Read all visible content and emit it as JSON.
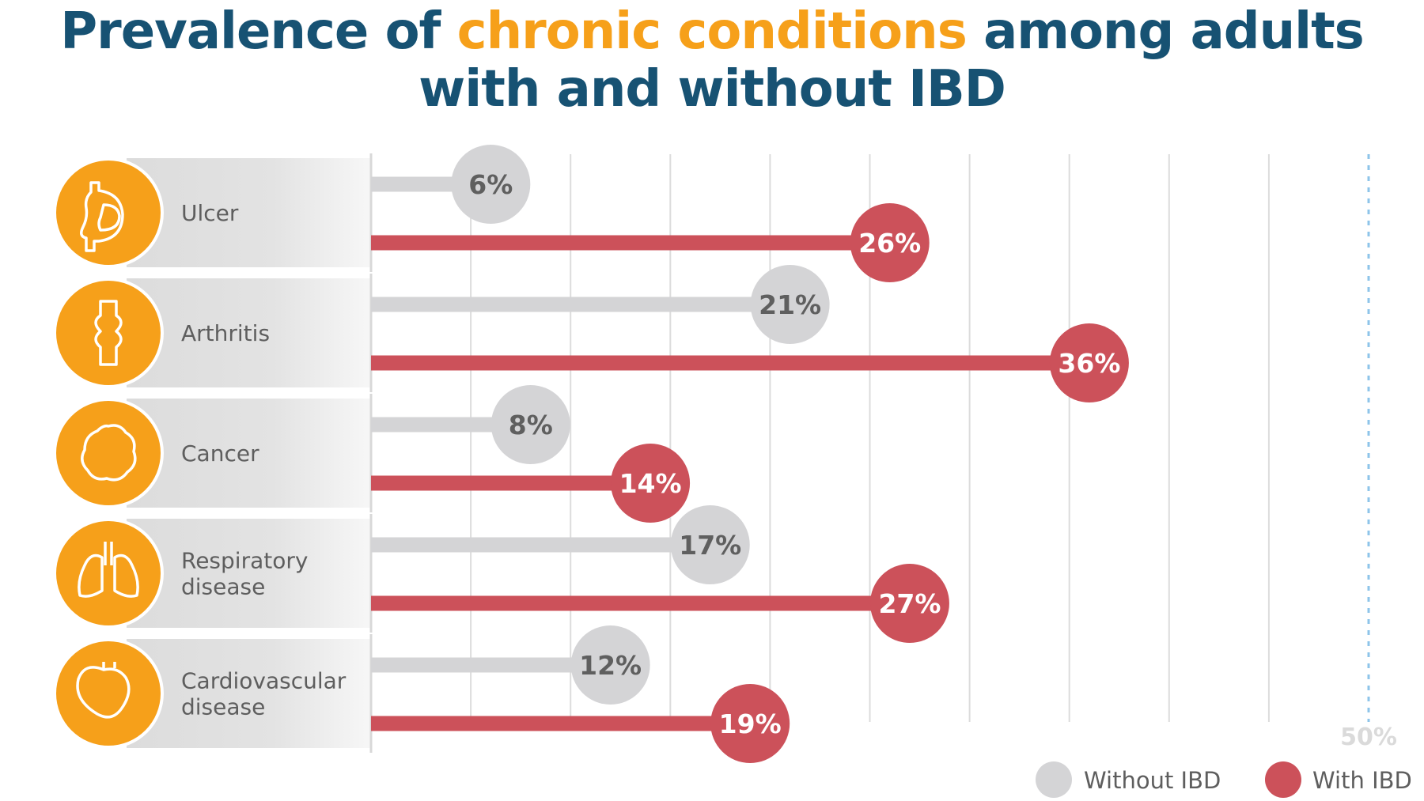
{
  "title": {
    "line1_before": "Prevalence of ",
    "line1_highlight": "chronic conditions",
    "line1_after": " among adults",
    "line2": "with and without IBD"
  },
  "colors": {
    "title": "#175273",
    "highlight": "#f6a01a",
    "with_ibd": "#cc515a",
    "without_ibd": "#d4d4d6",
    "icon_bg": "#f6a01a",
    "reference_line": "#8ec4ea"
  },
  "chart_data": {
    "type": "bar",
    "orientation": "horizontal",
    "categories": [
      "Ulcer",
      "Arthritis",
      "Cancer",
      "Respiratory disease",
      "Cardiovascular disease"
    ],
    "category_lines": [
      [
        "Ulcer"
      ],
      [
        "Arthritis"
      ],
      [
        "Cancer"
      ],
      [
        "Respiratory",
        "disease"
      ],
      [
        "Cardiovascular",
        "disease"
      ]
    ],
    "icons": [
      "stomach-icon",
      "joint-icon",
      "cell-icon",
      "lungs-icon",
      "heart-icon"
    ],
    "series": [
      {
        "name": "Without IBD",
        "values": [
          6,
          21,
          8,
          17,
          12
        ],
        "labels": [
          "6%",
          "21%",
          "8%",
          "17%",
          "12%"
        ]
      },
      {
        "name": "With IBD",
        "values": [
          26,
          36,
          14,
          27,
          19
        ],
        "labels": [
          "26%",
          "36%",
          "14%",
          "27%",
          "19%"
        ]
      }
    ],
    "xlim": [
      0,
      50
    ],
    "grid_step": 5,
    "reference_label": "50%",
    "legend": "bottom-right"
  }
}
